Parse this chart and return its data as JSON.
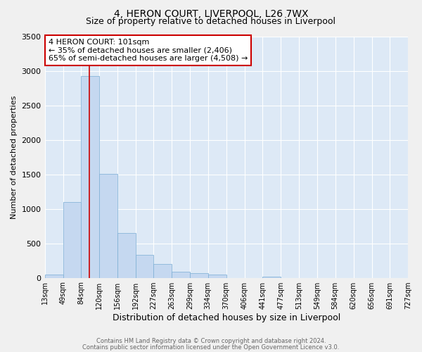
{
  "title": "4, HERON COURT, LIVERPOOL, L26 7WX",
  "subtitle": "Size of property relative to detached houses in Liverpool",
  "xlabel": "Distribution of detached houses by size in Liverpool",
  "ylabel": "Number of detached properties",
  "bar_color": "#c5d8f0",
  "bar_edgecolor": "#7aadd4",
  "background_color": "#dde9f6",
  "grid_color": "#ffffff",
  "vline_x": 101,
  "vline_color": "#cc0000",
  "bins": [
    13,
    49,
    84,
    120,
    156,
    192,
    227,
    263,
    299,
    334,
    370,
    406,
    441,
    477,
    513,
    549,
    584,
    620,
    656,
    691,
    727
  ],
  "counts": [
    50,
    1100,
    2920,
    1510,
    650,
    330,
    200,
    90,
    70,
    45,
    0,
    0,
    20,
    0,
    0,
    0,
    0,
    0,
    0,
    0
  ],
  "ylim": [
    0,
    3500
  ],
  "yticks": [
    0,
    500,
    1000,
    1500,
    2000,
    2500,
    3000,
    3500
  ],
  "annotation_title": "4 HERON COURT: 101sqm",
  "annotation_line1": "← 35% of detached houses are smaller (2,406)",
  "annotation_line2": "65% of semi-detached houses are larger (4,508) →",
  "annotation_box_facecolor": "#ffffff",
  "annotation_box_edgecolor": "#cc0000",
  "footer_line1": "Contains HM Land Registry data © Crown copyright and database right 2024.",
  "footer_line2": "Contains public sector information licensed under the Open Government Licence v3.0."
}
